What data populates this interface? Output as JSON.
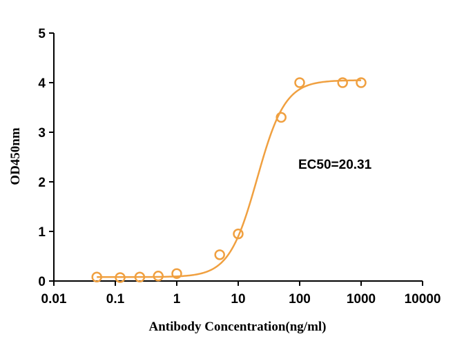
{
  "chart_data": {
    "type": "scatter",
    "xlabel": "Antibody Concentration(ng/ml)",
    "ylabel": "OD450nm",
    "xscale": "log",
    "xlim": [
      0.01,
      10000
    ],
    "ylim": [
      0,
      5
    ],
    "xticks": [
      "0.01",
      "0.1",
      "1",
      "10",
      "100",
      "1000",
      "10000"
    ],
    "yticks": [
      "0",
      "1",
      "2",
      "3",
      "4",
      "5"
    ],
    "grid": false,
    "legend": "none",
    "annotation": "EC50=20.31",
    "color": "#F0A040",
    "series": [
      {
        "x": [
          0.05,
          0.12,
          0.25,
          0.5,
          1,
          5,
          10,
          50,
          100,
          500,
          1000
        ],
        "y": [
          0.08,
          0.07,
          0.08,
          0.1,
          0.15,
          0.53,
          0.95,
          3.3,
          4.0,
          4.0,
          4.0
        ]
      }
    ],
    "fit": {
      "model": "4PL",
      "bottom": 0.08,
      "top": 4.05,
      "ec50": 20.31,
      "hill": 1.9,
      "x_range": [
        0.05,
        1000
      ]
    }
  }
}
